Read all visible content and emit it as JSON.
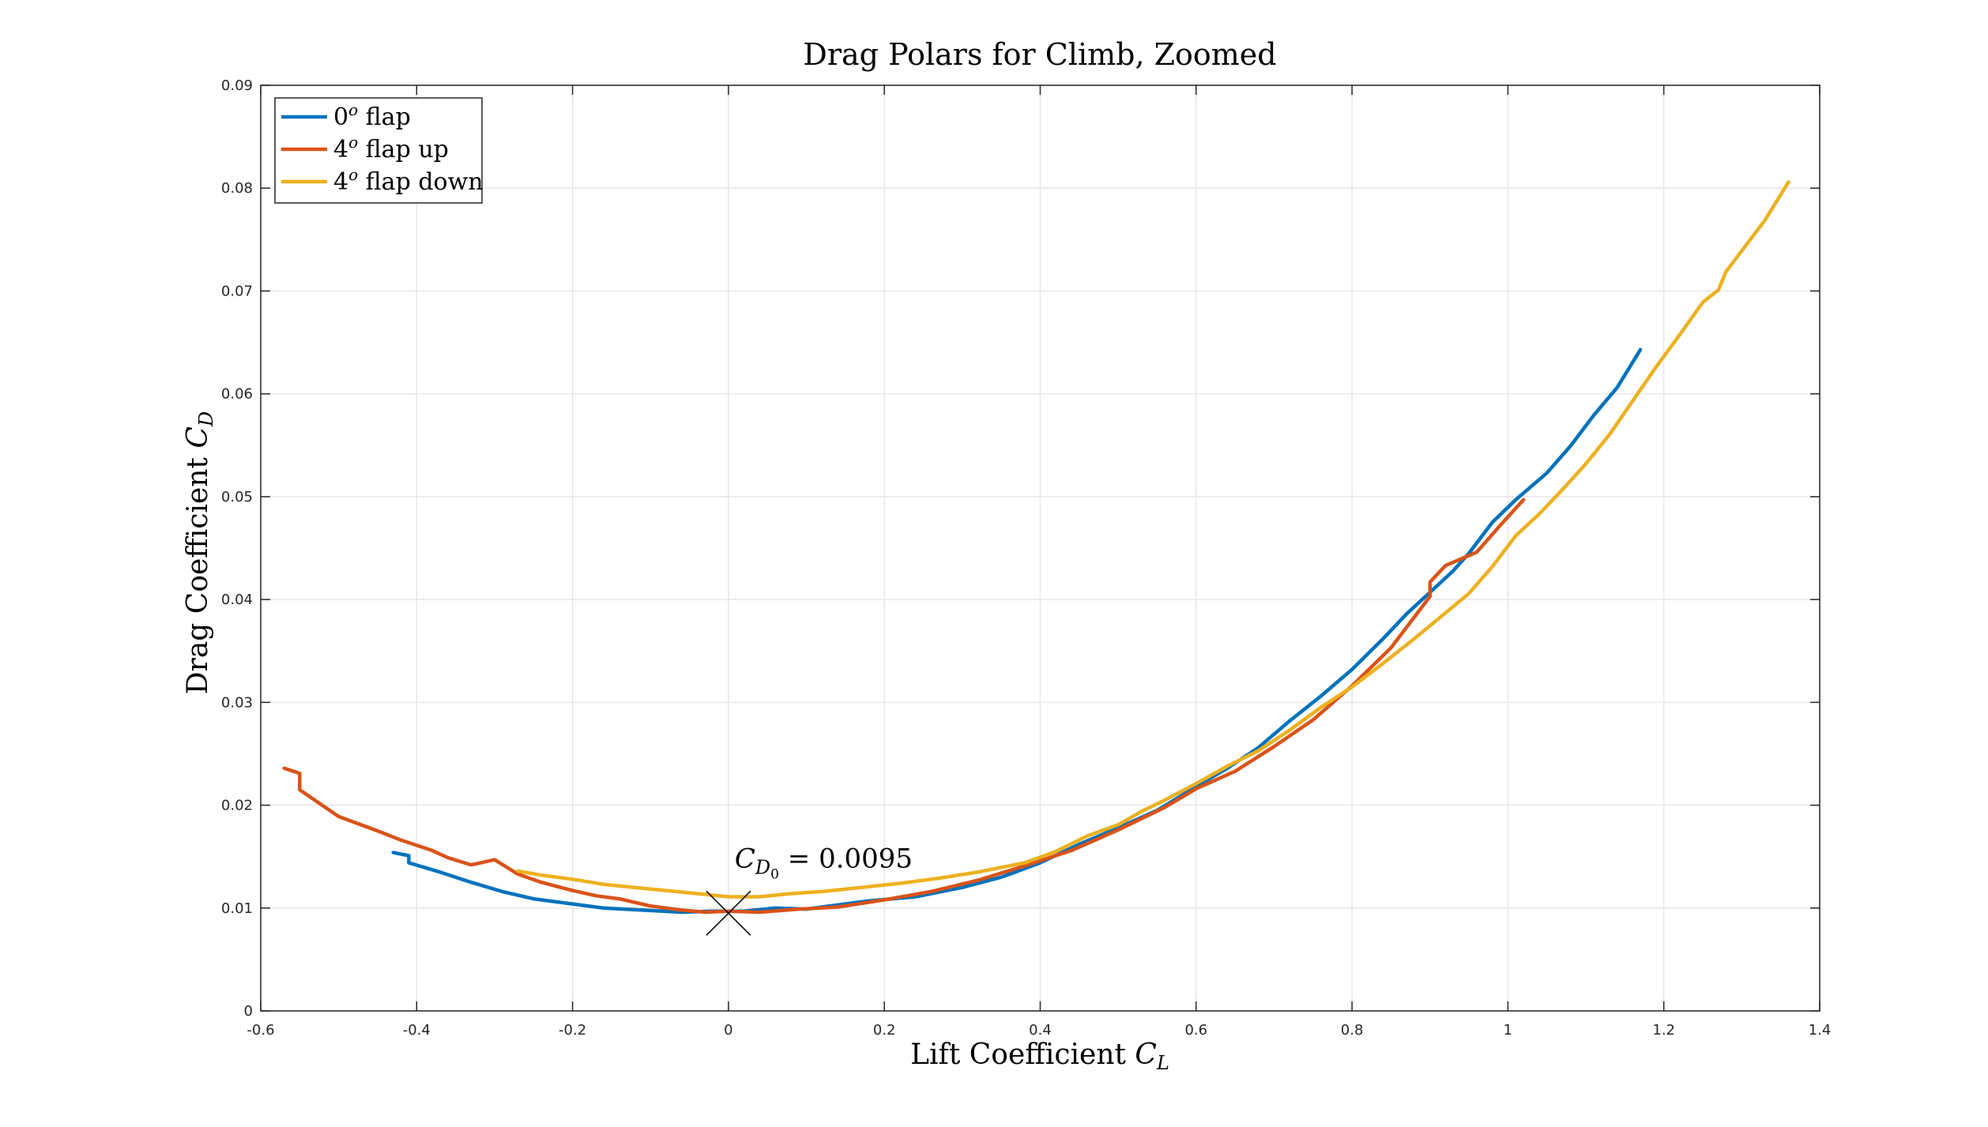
{
  "chart_data": {
    "type": "line",
    "title": "Drag Polars for Climb, Zoomed",
    "xlabel": {
      "main": "Lift Coefficient ",
      "symbol": "C",
      "sub": "L"
    },
    "ylabel": {
      "main": "Drag Coefficient ",
      "symbol": "C",
      "sub": "D"
    },
    "xlim": [
      -0.6,
      1.4
    ],
    "ylim": [
      0,
      0.09
    ],
    "xticks": [
      -0.6,
      -0.4,
      -0.2,
      0,
      0.2,
      0.4,
      0.6,
      0.8,
      1,
      1.2,
      1.4
    ],
    "xtick_labels": [
      "-0.6",
      "-0.4",
      "-0.2",
      "0",
      "0.2",
      "0.4",
      "0.6",
      "0.8",
      "1",
      "1.2",
      "1.4"
    ],
    "yticks": [
      0,
      0.01,
      0.02,
      0.03,
      0.04,
      0.05,
      0.06,
      0.07,
      0.08,
      0.09
    ],
    "ytick_labels": [
      "0",
      "0.01",
      "0.02",
      "0.03",
      "0.04",
      "0.05",
      "0.06",
      "0.07",
      "0.08",
      "0.09"
    ],
    "grid": true,
    "legend_position": "top-left",
    "series": [
      {
        "name": {
          "base": "0",
          "sup": "o",
          "rest": " flap"
        },
        "color": "#0072BD",
        "x": [
          -0.43,
          -0.41,
          -0.41,
          -0.37,
          -0.33,
          -0.29,
          -0.25,
          -0.21,
          -0.16,
          -0.11,
          -0.06,
          -0.02,
          0.02,
          0.06,
          0.1,
          0.14,
          0.18,
          0.24,
          0.3,
          0.35,
          0.4,
          0.45,
          0.5,
          0.55,
          0.6,
          0.64,
          0.68,
          0.72,
          0.76,
          0.8,
          0.84,
          0.87,
          0.9,
          0.93,
          0.95,
          0.98,
          1.01,
          1.05,
          1.08,
          1.11,
          1.14,
          1.17
        ],
        "y": [
          0.0154,
          0.0151,
          0.0144,
          0.0135,
          0.0125,
          0.0116,
          0.0109,
          0.0105,
          0.01,
          0.0098,
          0.0096,
          0.0097,
          0.0097,
          0.01,
          0.0099,
          0.0103,
          0.0107,
          0.0111,
          0.012,
          0.013,
          0.0144,
          0.0162,
          0.0178,
          0.0195,
          0.0218,
          0.0236,
          0.0256,
          0.0282,
          0.0306,
          0.0332,
          0.0362,
          0.0386,
          0.0407,
          0.0428,
          0.0445,
          0.0475,
          0.0497,
          0.0523,
          0.0549,
          0.0579,
          0.0606,
          0.0643
        ]
      },
      {
        "name": {
          "base": "4",
          "sup": "o",
          "rest": " flap up"
        },
        "color": "#D95319",
        "x": [
          -0.57,
          -0.55,
          -0.55,
          -0.55,
          -0.5,
          -0.45,
          -0.42,
          -0.38,
          -0.36,
          -0.33,
          -0.3,
          -0.27,
          -0.24,
          -0.2,
          -0.17,
          -0.14,
          -0.1,
          -0.06,
          -0.03,
          0.0,
          0.04,
          0.09,
          0.14,
          0.2,
          0.26,
          0.32,
          0.38,
          0.44,
          0.5,
          0.56,
          0.6,
          0.65,
          0.7,
          0.75,
          0.8,
          0.85,
          0.9,
          0.9,
          0.92,
          0.96,
          0.99,
          1.02
        ],
        "y": [
          0.0236,
          0.0231,
          0.0222,
          0.0215,
          0.0189,
          0.0175,
          0.0166,
          0.0156,
          0.0149,
          0.0142,
          0.0147,
          0.0133,
          0.0125,
          0.0117,
          0.0112,
          0.0109,
          0.0102,
          0.0098,
          0.0096,
          0.0097,
          0.0096,
          0.0099,
          0.0101,
          0.0108,
          0.0116,
          0.0127,
          0.0141,
          0.0156,
          0.0176,
          0.0198,
          0.0216,
          0.0233,
          0.0257,
          0.0283,
          0.0316,
          0.0353,
          0.0403,
          0.0417,
          0.0433,
          0.0446,
          0.0472,
          0.0497
        ]
      },
      {
        "name": {
          "base": "4",
          "sup": "o",
          "rest": " flap down"
        },
        "color": "#EDB120",
        "x": [
          -0.27,
          -0.24,
          -0.2,
          -0.16,
          -0.12,
          -0.08,
          -0.04,
          0.0,
          0.04,
          0.08,
          0.12,
          0.17,
          0.22,
          0.27,
          0.32,
          0.38,
          0.42,
          0.46,
          0.5,
          0.53,
          0.56,
          0.6,
          0.64,
          0.68,
          0.72,
          0.76,
          0.8,
          0.84,
          0.88,
          0.92,
          0.95,
          0.98,
          1.01,
          1.04,
          1.07,
          1.1,
          1.13,
          1.16,
          1.19,
          1.22,
          1.25,
          1.27,
          1.28,
          1.3,
          1.33,
          1.36
        ],
        "y": [
          0.0136,
          0.0132,
          0.0128,
          0.0123,
          0.012,
          0.0117,
          0.0114,
          0.0111,
          0.0111,
          0.0114,
          0.0116,
          0.012,
          0.0124,
          0.0129,
          0.0135,
          0.0144,
          0.0155,
          0.017,
          0.0181,
          0.0194,
          0.0205,
          0.0221,
          0.0238,
          0.0253,
          0.0273,
          0.0295,
          0.0315,
          0.0338,
          0.0362,
          0.0387,
          0.0406,
          0.0432,
          0.0462,
          0.0483,
          0.0507,
          0.0532,
          0.056,
          0.0593,
          0.0626,
          0.0657,
          0.0689,
          0.0701,
          0.0719,
          0.0739,
          0.0769,
          0.0806
        ]
      }
    ],
    "annotation": {
      "x": 0,
      "y": 0.0095,
      "marker": "x",
      "label": {
        "symbol": "C",
        "sub": "D",
        "subsub": "0",
        "rest": " = 0.0095"
      }
    }
  }
}
